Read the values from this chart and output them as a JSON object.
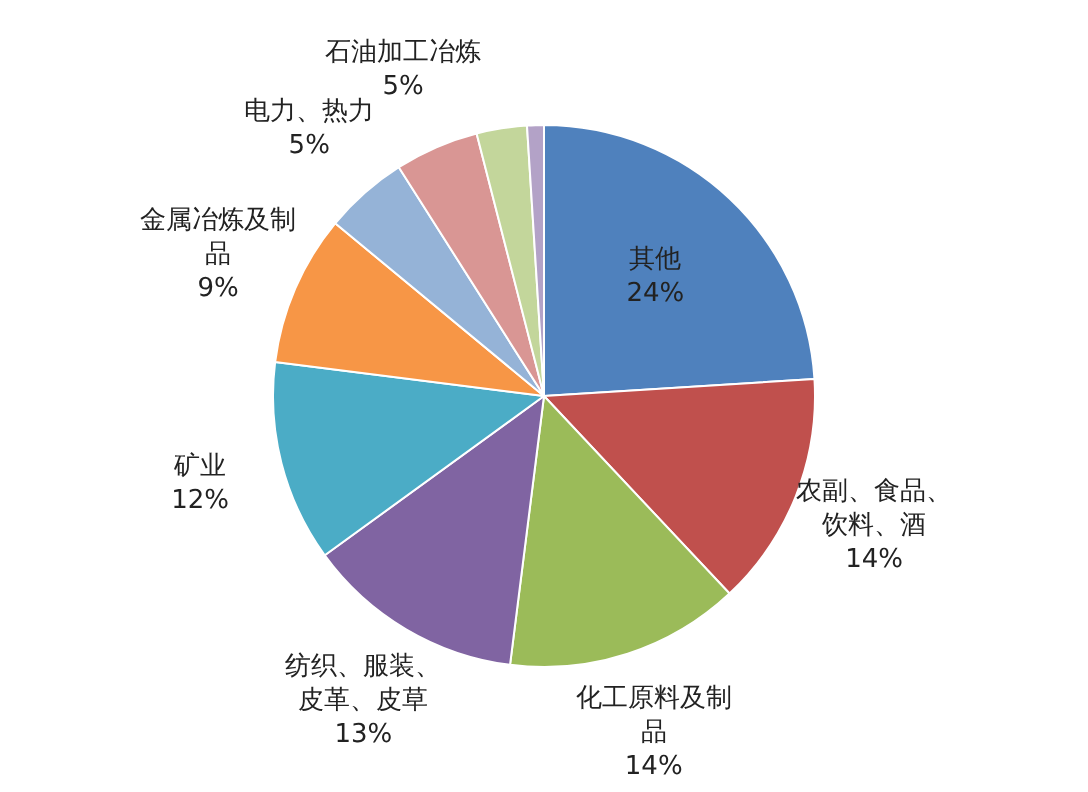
{
  "chart_data": {
    "type": "pie",
    "categories": [
      "其他",
      "农副、食品、饮料、酒",
      "化工原料及制品",
      "纺织、服装、皮革、皮草",
      "矿业",
      "金属冶炼及制品",
      "电力、热力",
      "石油加工冶炼",
      null,
      null
    ],
    "values": [
      24,
      14,
      14,
      13,
      12,
      9,
      5,
      5,
      3,
      1
    ],
    "colors": [
      "#4f81bd",
      "#c0504d",
      "#9bbb59",
      "#8064a2",
      "#4bacc6",
      "#f79646",
      "#95b3d7",
      "#d99694",
      "#c3d69b",
      "#b3a2c7"
    ],
    "value_labels": [
      "24%",
      "14%",
      "14%",
      "13%",
      "12%",
      "9%",
      "5%",
      "5%",
      null,
      null
    ],
    "legend": false
  }
}
